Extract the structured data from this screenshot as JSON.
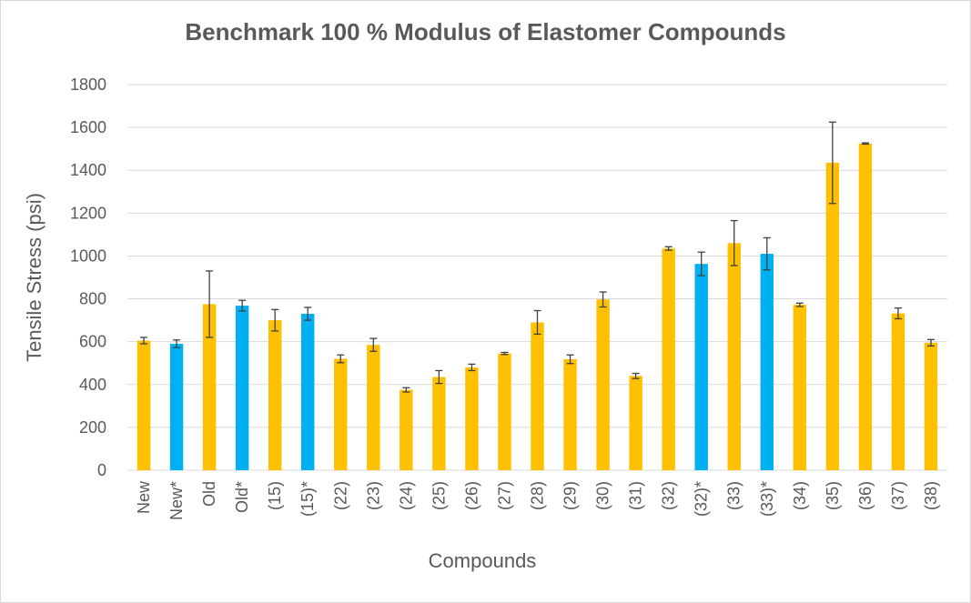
{
  "chart_data": {
    "type": "bar",
    "title": "Benchmark 100 % Modulus of Elastomer Compounds",
    "xlabel": "Compounds",
    "ylabel": "Tensile Stress (psi)",
    "ylim": [
      0,
      1800
    ],
    "yticks": [
      0,
      200,
      400,
      600,
      800,
      1000,
      1200,
      1400,
      1600,
      1800
    ],
    "grid": true,
    "legend": "none",
    "colors": {
      "default": "#ffc000",
      "starred": "#00b0f0",
      "grid": "#d9d9d9",
      "error_bar": "#404040"
    },
    "categories": [
      "New",
      "New*",
      "Old",
      "Old*",
      "(15)",
      "(15)*",
      "(22)",
      "(23)",
      "(24)",
      "(25)",
      "(26)",
      "(27)",
      "(28)",
      "(29)",
      "(30)",
      "(31)",
      "(32)",
      "(32)*",
      "(33)",
      "(33)*",
      "(34)",
      "(35)",
      "(36)",
      "(37)",
      "(38)"
    ],
    "values": [
      605,
      590,
      775,
      768,
      700,
      730,
      520,
      585,
      375,
      435,
      480,
      545,
      690,
      518,
      797,
      440,
      1035,
      963,
      1060,
      1010,
      772,
      1435,
      1525,
      732,
      595
    ],
    "errors": [
      15,
      18,
      155,
      25,
      50,
      30,
      18,
      30,
      10,
      30,
      15,
      5,
      55,
      20,
      35,
      12,
      8,
      55,
      105,
      75,
      8,
      190,
      3,
      25,
      15
    ],
    "bar_color_group": [
      "default",
      "starred",
      "default",
      "starred",
      "default",
      "starred",
      "default",
      "default",
      "default",
      "default",
      "default",
      "default",
      "default",
      "default",
      "default",
      "default",
      "default",
      "starred",
      "default",
      "starred",
      "default",
      "default",
      "default",
      "default",
      "default"
    ]
  }
}
